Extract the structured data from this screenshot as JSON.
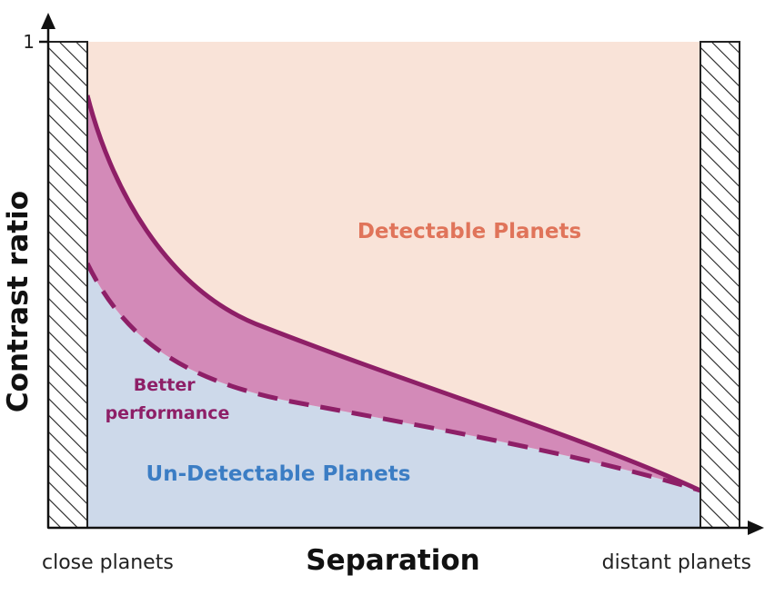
{
  "axes": {
    "y_label": "Contrast ratio",
    "y_tick_top": "1",
    "x_label": "Separation",
    "x_left_label": "close planets",
    "x_right_label": "distant planets"
  },
  "regions": {
    "detectable": "Detectable Planets",
    "undetectable": "Un-Detectable Planets",
    "improvement": "Better performance"
  },
  "improvement_lines": [
    "Better",
    "performance"
  ],
  "colors": {
    "detectable_fill": "#f9e3d8",
    "undetectable_fill": "#cdd9ea",
    "improvement_fill": "#d38ab8",
    "curve": "#8e1f67",
    "detectable_text": "#e0745a",
    "undetectable_text": "#3b7dc4",
    "better_text": "#8e1f67",
    "hatch": "#222222"
  }
}
